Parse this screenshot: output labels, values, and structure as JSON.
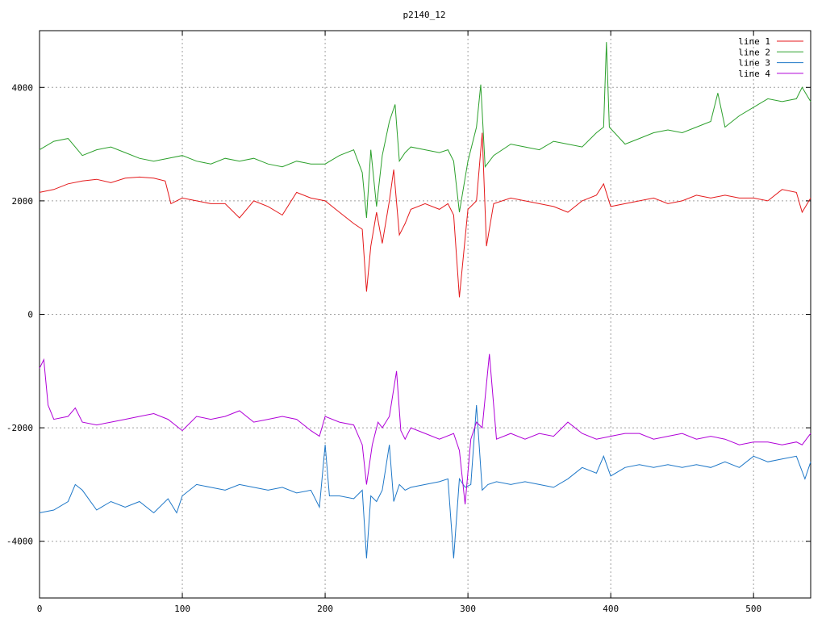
{
  "chart_data": {
    "type": "line",
    "title": "p2140_12",
    "xlabel": "",
    "ylabel": "",
    "xlim": [
      0,
      540
    ],
    "ylim": [
      -5000,
      5000
    ],
    "x_ticks": [
      0,
      100,
      200,
      300,
      400,
      500
    ],
    "y_ticks": [
      -4000,
      -2000,
      0,
      2000,
      4000
    ],
    "grid": true,
    "legend_position": "top-right",
    "series": [
      {
        "name": "line 1",
        "color": "#e41a1c",
        "x": [
          0,
          10,
          20,
          30,
          40,
          50,
          60,
          70,
          80,
          88,
          92,
          100,
          110,
          120,
          130,
          140,
          150,
          160,
          170,
          180,
          190,
          200,
          210,
          220,
          226,
          229,
          232,
          236,
          240,
          245,
          248,
          252,
          256,
          260,
          270,
          280,
          286,
          290,
          294,
          300,
          306,
          310,
          313,
          318,
          330,
          340,
          350,
          360,
          370,
          380,
          390,
          395,
          400,
          410,
          420,
          430,
          440,
          450,
          460,
          470,
          480,
          490,
          500,
          510,
          520,
          530,
          534,
          540
        ],
        "y": [
          2150,
          2200,
          2300,
          2350,
          2380,
          2320,
          2400,
          2420,
          2400,
          2350,
          1950,
          2050,
          2000,
          1950,
          1950,
          1700,
          2000,
          1900,
          1750,
          2150,
          2050,
          2000,
          1800,
          1600,
          1500,
          400,
          1200,
          1800,
          1250,
          2000,
          2550,
          1400,
          1600,
          1850,
          1950,
          1850,
          1950,
          1750,
          300,
          1850,
          2000,
          3200,
          1200,
          1950,
          2050,
          2000,
          1950,
          1900,
          1800,
          2000,
          2100,
          2300,
          1900,
          1950,
          2000,
          2050,
          1950,
          2000,
          2100,
          2050,
          2100,
          2050,
          2050,
          2000,
          2200,
          2150,
          1800,
          2050
        ]
      },
      {
        "name": "line 2",
        "color": "#2ca02c",
        "x": [
          0,
          10,
          20,
          30,
          40,
          50,
          60,
          70,
          80,
          90,
          100,
          110,
          120,
          130,
          140,
          150,
          160,
          170,
          180,
          190,
          200,
          210,
          220,
          226,
          229,
          232,
          236,
          240,
          245,
          249,
          252,
          256,
          260,
          270,
          280,
          286,
          290,
          294,
          300,
          306,
          309,
          312,
          318,
          330,
          340,
          350,
          360,
          370,
          380,
          390,
          395,
          397,
          399,
          410,
          420,
          430,
          440,
          450,
          460,
          470,
          475,
          480,
          490,
          500,
          510,
          520,
          530,
          534,
          540
        ],
        "y": [
          2900,
          3050,
          3100,
          2800,
          2900,
          2950,
          2850,
          2750,
          2700,
          2750,
          2800,
          2700,
          2650,
          2750,
          2700,
          2750,
          2650,
          2600,
          2700,
          2650,
          2650,
          2800,
          2900,
          2500,
          1700,
          2900,
          1900,
          2800,
          3400,
          3700,
          2700,
          2850,
          2950,
          2900,
          2850,
          2900,
          2700,
          1800,
          2700,
          3300,
          4050,
          2600,
          2800,
          3000,
          2950,
          2900,
          3050,
          3000,
          2950,
          3200,
          3300,
          4800,
          3300,
          3000,
          3100,
          3200,
          3250,
          3200,
          3300,
          3400,
          3900,
          3300,
          3500,
          3650,
          3800,
          3750,
          3800,
          4000,
          3750
        ]
      },
      {
        "name": "line 3",
        "color": "#1f78c8",
        "x": [
          0,
          10,
          20,
          25,
          30,
          40,
          50,
          60,
          70,
          80,
          90,
          96,
          100,
          110,
          120,
          130,
          140,
          150,
          160,
          170,
          180,
          190,
          196,
          200,
          203,
          210,
          220,
          226,
          229,
          232,
          236,
          240,
          245,
          248,
          252,
          256,
          260,
          270,
          280,
          286,
          290,
          294,
          298,
          302,
          306,
          310,
          314,
          320,
          330,
          340,
          350,
          360,
          370,
          380,
          390,
          395,
          400,
          410,
          420,
          430,
          440,
          450,
          460,
          470,
          480,
          490,
          500,
          510,
          520,
          530,
          536,
          540
        ],
        "y": [
          -3500,
          -3450,
          -3300,
          -3000,
          -3100,
          -3450,
          -3300,
          -3400,
          -3300,
          -3500,
          -3250,
          -3500,
          -3200,
          -3000,
          -3050,
          -3100,
          -3000,
          -3050,
          -3100,
          -3050,
          -3150,
          -3100,
          -3400,
          -2300,
          -3200,
          -3200,
          -3250,
          -3100,
          -4300,
          -3200,
          -3300,
          -3100,
          -2300,
          -3300,
          -3000,
          -3100,
          -3050,
          -3000,
          -2950,
          -2900,
          -4300,
          -2900,
          -3050,
          -3000,
          -1600,
          -3100,
          -3000,
          -2950,
          -3000,
          -2950,
          -3000,
          -3050,
          -2900,
          -2700,
          -2800,
          -2500,
          -2850,
          -2700,
          -2650,
          -2700,
          -2650,
          -2700,
          -2650,
          -2700,
          -2600,
          -2700,
          -2500,
          -2600,
          -2550,
          -2500,
          -2900,
          -2600
        ]
      },
      {
        "name": "line 4",
        "color": "#b000d8",
        "x": [
          0,
          3,
          6,
          10,
          20,
          25,
          30,
          40,
          50,
          60,
          70,
          80,
          90,
          100,
          110,
          120,
          130,
          140,
          150,
          160,
          170,
          180,
          190,
          196,
          200,
          210,
          220,
          226,
          229,
          233,
          237,
          240,
          245,
          250,
          253,
          256,
          260,
          270,
          280,
          290,
          294,
          298,
          302,
          306,
          310,
          315,
          320,
          330,
          340,
          350,
          360,
          370,
          380,
          390,
          400,
          410,
          420,
          430,
          440,
          450,
          460,
          470,
          480,
          490,
          500,
          510,
          520,
          530,
          534,
          540
        ],
        "y": [
          -950,
          -800,
          -1600,
          -1850,
          -1800,
          -1650,
          -1900,
          -1950,
          -1900,
          -1850,
          -1800,
          -1750,
          -1850,
          -2050,
          -1800,
          -1850,
          -1800,
          -1700,
          -1900,
          -1850,
          -1800,
          -1850,
          -2050,
          -2150,
          -1800,
          -1900,
          -1950,
          -2300,
          -3000,
          -2300,
          -1900,
          -2000,
          -1800,
          -1000,
          -2050,
          -2200,
          -2000,
          -2100,
          -2200,
          -2100,
          -2400,
          -3350,
          -2200,
          -1900,
          -2000,
          -700,
          -2200,
          -2100,
          -2200,
          -2100,
          -2150,
          -1900,
          -2100,
          -2200,
          -2150,
          -2100,
          -2100,
          -2200,
          -2150,
          -2100,
          -2200,
          -2150,
          -2200,
          -2300,
          -2250,
          -2250,
          -2300,
          -2250,
          -2300,
          -2100
        ]
      }
    ]
  }
}
